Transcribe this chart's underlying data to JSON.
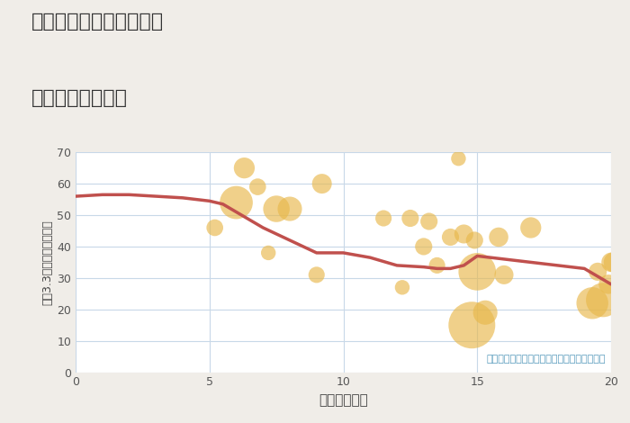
{
  "title_line1": "神奈川県伊勢原市白根の",
  "title_line2": "駅距離別土地価格",
  "xlabel": "駅距離（分）",
  "ylabel": "坪（3.3㎡）単価（万円）",
  "annotation": "円の大きさは、取引のあった物件面積を示す",
  "xlim": [
    0,
    20
  ],
  "ylim": [
    0,
    70
  ],
  "xticks": [
    0,
    5,
    10,
    15,
    20
  ],
  "yticks": [
    0,
    10,
    20,
    30,
    40,
    50,
    60,
    70
  ],
  "bg_color": "#f0ede8",
  "plot_bg_color": "#ffffff",
  "grid_color": "#c8d8e8",
  "bubble_color": "#e8b84b",
  "bubble_alpha": 0.65,
  "line_color": "#c0504d",
  "line_width": 2.5,
  "scatter_x": [
    5.2,
    6.0,
    6.3,
    6.8,
    7.2,
    7.5,
    8.0,
    9.2,
    9.0,
    11.5,
    12.2,
    12.5,
    13.0,
    13.2,
    13.5,
    14.0,
    14.5,
    14.3,
    15.0,
    14.8,
    15.3,
    16.0,
    17.0,
    19.5,
    19.7,
    19.9,
    20.1,
    20.0,
    15.8,
    14.9,
    19.3
  ],
  "scatter_y": [
    46,
    54,
    65,
    59,
    38,
    52,
    52,
    60,
    31,
    49,
    27,
    49,
    40,
    48,
    34,
    43,
    44,
    68,
    32,
    15,
    19,
    31,
    46,
    32,
    23,
    28,
    35,
    35,
    43,
    42,
    22
  ],
  "scatter_size": [
    180,
    700,
    280,
    180,
    140,
    450,
    380,
    250,
    170,
    170,
    140,
    190,
    190,
    190,
    170,
    190,
    230,
    140,
    900,
    1400,
    380,
    230,
    280,
    210,
    750,
    240,
    260,
    240,
    240,
    190,
    650
  ],
  "trend_x": [
    0,
    1,
    2,
    3,
    4,
    5,
    5.5,
    6,
    7,
    8,
    9,
    10,
    11,
    12,
    13,
    13.5,
    14,
    14.5,
    15,
    15.5,
    16,
    17,
    18,
    19,
    20
  ],
  "trend_y": [
    56,
    56.5,
    56.5,
    56,
    55.5,
    54.5,
    53.5,
    51,
    46,
    42,
    38,
    38,
    36.5,
    34,
    33.5,
    33,
    33,
    34,
    37,
    36.5,
    36,
    35,
    34,
    33,
    28
  ]
}
